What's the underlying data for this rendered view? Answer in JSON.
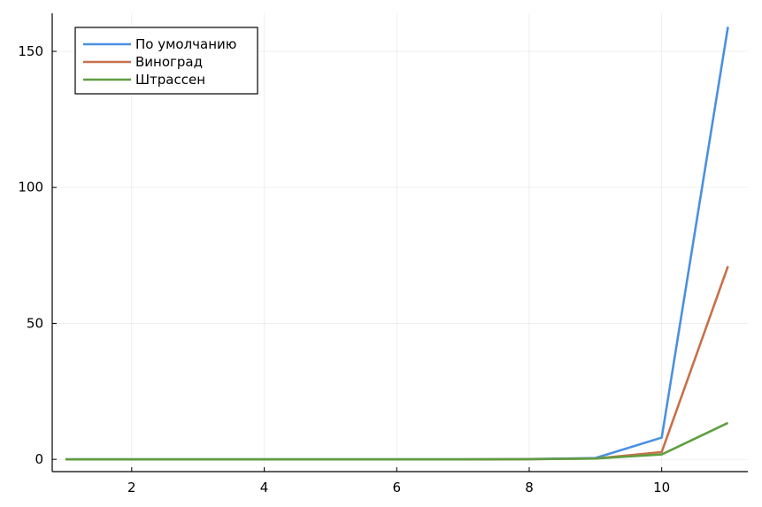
{
  "chart_data": {
    "type": "line",
    "x": [
      1,
      2,
      3,
      4,
      5,
      6,
      7,
      8,
      9,
      10,
      11
    ],
    "series": [
      {
        "name": "По умолчанию",
        "color": "#4a90e2",
        "values": [
          0,
          0,
          0,
          0,
          0,
          0,
          0,
          0.1,
          0.5,
          8,
          159
        ]
      },
      {
        "name": "Виноград",
        "color": "#c8704a",
        "values": [
          0,
          0,
          0,
          0,
          0,
          0,
          0,
          0.05,
          0.3,
          2.7,
          71
        ]
      },
      {
        "name": "Штрассен",
        "color": "#5f9e3e",
        "values": [
          0,
          0,
          0,
          0,
          0,
          0,
          0,
          0.05,
          0.3,
          1.8,
          13.4
        ]
      }
    ],
    "xlim": [
      0.8,
      11.3
    ],
    "ylim": [
      -4.5,
      164
    ],
    "xticks": [
      2,
      4,
      6,
      8,
      10
    ],
    "xtick_labels": [
      "2",
      "4",
      "6",
      "8",
      "10"
    ],
    "yticks": [
      0,
      50,
      100,
      150
    ],
    "ytick_labels": [
      "0",
      "50",
      "100",
      "150"
    ],
    "grid": true,
    "legend_position": "top-left",
    "title": "",
    "xlabel": "",
    "ylabel": ""
  }
}
